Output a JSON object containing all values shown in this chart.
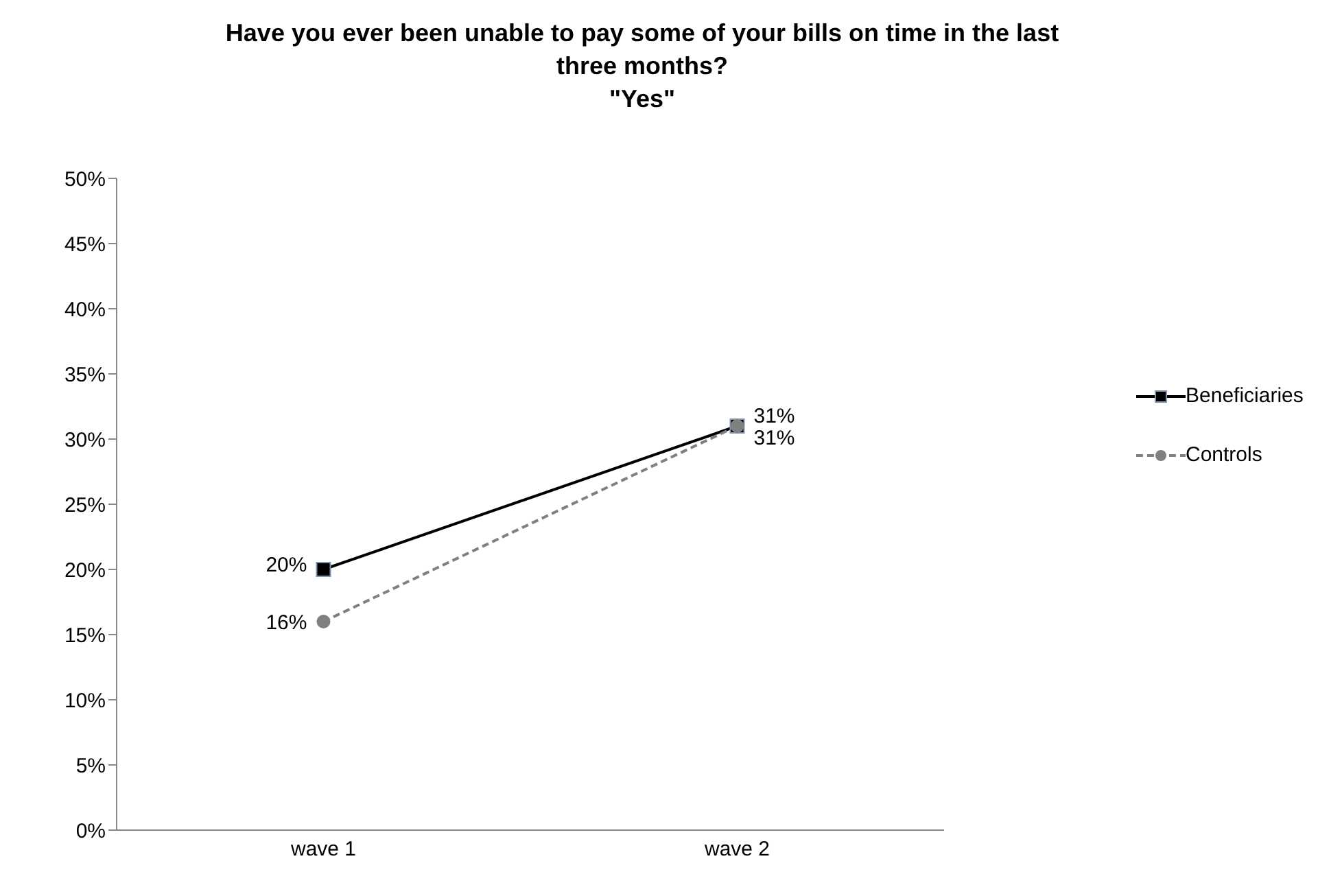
{
  "chart_data": {
    "type": "line",
    "title": "Have you ever been unable to pay some of your bills on time in the last three months?",
    "subtitle": "\"Yes\"",
    "categories": [
      "wave 1",
      "wave 2"
    ],
    "series": [
      {
        "name": "Beneficiaries",
        "color": "#000000",
        "values": [
          20,
          31
        ],
        "marker": "square",
        "line_style": "solid",
        "value_labels": [
          "20%",
          "31%"
        ]
      },
      {
        "name": "Controls",
        "color": "#808080",
        "values": [
          16,
          31
        ],
        "marker": "circle",
        "line_style": "dashed",
        "value_labels": [
          "16%",
          "31%"
        ]
      }
    ],
    "ylim": [
      0,
      50
    ],
    "yticks": [
      {
        "value": 0,
        "label": "0%"
      },
      {
        "value": 5,
        "label": "5%"
      },
      {
        "value": 10,
        "label": "10%"
      },
      {
        "value": 15,
        "label": "15%"
      },
      {
        "value": 20,
        "label": "20%"
      },
      {
        "value": 25,
        "label": "25%"
      },
      {
        "value": 30,
        "label": "30%"
      },
      {
        "value": 35,
        "label": "35%"
      },
      {
        "value": 40,
        "label": "40%"
      },
      {
        "value": 45,
        "label": "45%"
      },
      {
        "value": 50,
        "label": "50%"
      }
    ],
    "grid": false,
    "legend": "right"
  }
}
